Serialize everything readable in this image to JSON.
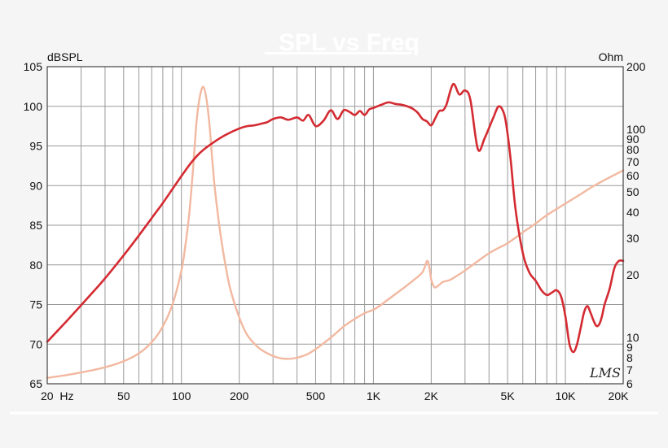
{
  "chart_data": {
    "type": "line",
    "title": "_SPL vs Freq",
    "left_axis_label": "dBSPL",
    "right_axis_label": "Ohm",
    "watermark": "LMS",
    "x_scale": "log",
    "xlim": [
      20,
      20000
    ],
    "ylim_left": [
      65,
      105
    ],
    "ylim_right": [
      6,
      200
    ],
    "y_right_scale": "log",
    "grid": true,
    "x_tick_labels": [
      {
        "v": 20,
        "label": "20  Hz"
      },
      {
        "v": 50,
        "label": "50"
      },
      {
        "v": 100,
        "label": "100"
      },
      {
        "v": 200,
        "label": "200"
      },
      {
        "v": 500,
        "label": "500"
      },
      {
        "v": 1000,
        "label": "1K"
      },
      {
        "v": 2000,
        "label": "2K"
      },
      {
        "v": 5000,
        "label": "5K"
      },
      {
        "v": 10000,
        "label": "10K"
      },
      {
        "v": 20000,
        "label": "20K"
      }
    ],
    "y_left_ticks": [
      105,
      100,
      95,
      90,
      85,
      80,
      75,
      70,
      65
    ],
    "y_right_ticks": [
      200,
      100,
      90,
      80,
      70,
      60,
      50,
      40,
      30,
      20,
      10,
      9,
      8,
      7,
      6
    ],
    "series": [
      {
        "axis": "left",
        "color": "#d42b32",
        "x": [
          20,
          25,
          30,
          35,
          40,
          50,
          60,
          70,
          80,
          90,
          100,
          110,
          120,
          130,
          150,
          170,
          200,
          220,
          240,
          260,
          280,
          300,
          330,
          360,
          400,
          430,
          460,
          500,
          550,
          600,
          650,
          700,
          750,
          800,
          850,
          900,
          950,
          1000,
          1100,
          1200,
          1300,
          1400,
          1500,
          1600,
          1700,
          1800,
          1900,
          2000,
          2100,
          2200,
          2300,
          2400,
          2600,
          2800,
          3000,
          3200,
          3500,
          3800,
          4200,
          4500,
          4800,
          5000,
          5200,
          5500,
          6000,
          6500,
          7000,
          7500,
          8000,
          8500,
          9000,
          9500,
          10000,
          10500,
          11000,
          11500,
          12000,
          12500,
          13000,
          13500,
          14000,
          14500,
          15000,
          15500,
          16000,
          17000,
          18000,
          19000,
          20000
        ],
        "y": [
          70.3,
          72.8,
          74.9,
          76.7,
          78.3,
          81.2,
          83.7,
          85.9,
          87.8,
          89.6,
          91.2,
          92.6,
          93.7,
          94.5,
          95.6,
          96.4,
          97.2,
          97.5,
          97.6,
          97.8,
          98.0,
          98.4,
          98.6,
          98.3,
          98.6,
          98.2,
          98.9,
          97.5,
          98.2,
          99.5,
          98.4,
          99.5,
          99.3,
          98.9,
          99.4,
          98.9,
          99.6,
          99.8,
          100.2,
          100.5,
          100.3,
          100.2,
          100.0,
          99.7,
          99.2,
          98.4,
          98.1,
          97.6,
          98.5,
          99.4,
          99.5,
          100.2,
          102.8,
          101.5,
          102.0,
          100.8,
          94.6,
          96.0,
          98.5,
          100.0,
          99.0,
          96.5,
          93.0,
          87.0,
          81.5,
          79.0,
          78.0,
          76.8,
          76.2,
          76.5,
          76.8,
          76.0,
          73.5,
          70.0,
          69.0,
          70.0,
          72.0,
          74.0,
          74.8,
          74.0,
          73.0,
          72.3,
          72.5,
          73.5,
          75.0,
          77.0,
          79.6,
          80.5,
          80.5
        ]
      },
      {
        "axis": "right",
        "color": "#f2b8a0",
        "x": [
          20,
          25,
          30,
          40,
          50,
          60,
          70,
          80,
          90,
          100,
          105,
          110,
          115,
          120,
          125,
          130,
          135,
          140,
          145,
          150,
          160,
          170,
          180,
          200,
          220,
          250,
          280,
          320,
          360,
          400,
          450,
          500,
          600,
          700,
          800,
          900,
          1000,
          1100,
          1200,
          1400,
          1600,
          1800,
          1900,
          1950,
          2000,
          2050,
          2100,
          2200,
          2300,
          2500,
          2700,
          3000,
          3500,
          4000,
          4500,
          5000,
          6000,
          7000,
          8000,
          10000,
          12000,
          14000,
          17000,
          20000
        ],
        "y": [
          6.4,
          6.6,
          6.8,
          7.2,
          7.7,
          8.4,
          9.5,
          11.3,
          14.5,
          21.0,
          28.0,
          40.0,
          65.0,
          110.0,
          145.0,
          160.0,
          140.0,
          105.0,
          70.0,
          50.0,
          31.0,
          22.0,
          17.0,
          12.5,
          10.3,
          9.0,
          8.4,
          8.0,
          7.9,
          8.0,
          8.3,
          8.8,
          10.0,
          11.3,
          12.3,
          13.1,
          13.6,
          14.4,
          15.3,
          17.0,
          18.7,
          20.6,
          23.3,
          22.0,
          19.0,
          17.8,
          17.4,
          17.9,
          18.5,
          18.9,
          19.7,
          21.0,
          23.3,
          25.4,
          27.0,
          28.4,
          32.0,
          35.3,
          38.7,
          44.0,
          48.8,
          53.4,
          58.8,
          63.5
        ]
      }
    ]
  }
}
